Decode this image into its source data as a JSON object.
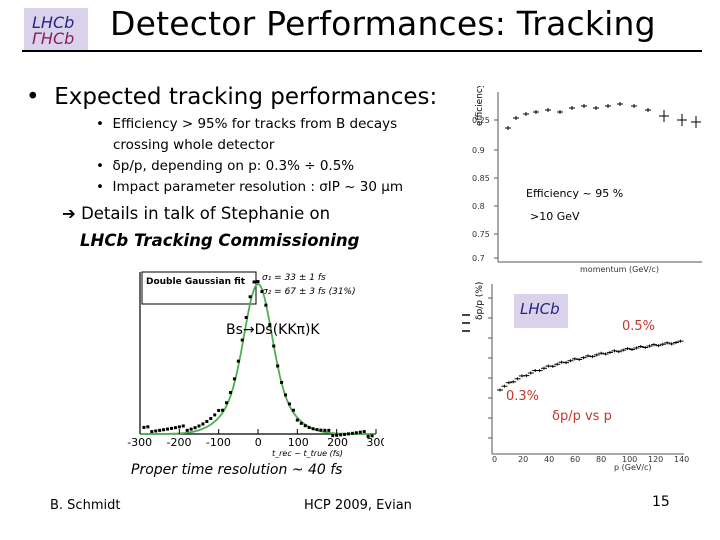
{
  "header": {
    "title": "Detector Performances: Tracking"
  },
  "logo": {
    "text_top": "LHCb",
    "text_bottom": "ГHCb"
  },
  "main_bullet": "Expected  tracking performances:",
  "sub_bullets": [
    "Efficiency > 95% for tracks from B decays",
    "crossing whole detector",
    "δp/p, depending on p:  0.3% ÷ 0.5%",
    "Impact parameter resolution : σIP ~ 30 μm"
  ],
  "details": {
    "line1": "Details in talk of Stephanie on",
    "line2": "LHCb Tracking Commissioning"
  },
  "eff_plot": {
    "ylabel": "efficiency",
    "yticks": [
      "0.25",
      "0.9",
      "0.85",
      "0.8",
      "0.75",
      "0.7"
    ],
    "xlabel": "momentum (GeV/c)",
    "label_eff": "Efficiency ~ 95 %",
    "label_gev": ">10 GeV"
  },
  "dp_plot": {
    "ylabel": "δp/p (%)",
    "label_high": "0.5%",
    "label_low": "0.3%",
    "caption": "δp/p vs p",
    "xticks": [
      "0",
      "20",
      "40",
      "60",
      "80",
      "100",
      "120",
      "140"
    ],
    "xlabel": "p (GeV/c)",
    "logo": "LHCb"
  },
  "gauss_plot": {
    "legend_title": "Double Gaussian fit",
    "sigma1": "σ₁ = 33 ± 1 fs",
    "sigma2": "σ₂ = 67 ± 3 fs (31%)",
    "decay": "Bs→Ds(KKπ)K",
    "xticks": [
      "-300",
      "-200",
      "-100",
      "0",
      "100",
      "200",
      "300"
    ],
    "xlabel": "t_rec − t_true (fs)",
    "caption": "Proper time resolution ~ 40 fs"
  },
  "footer": {
    "author": "B. Schmidt",
    "event": "HCP 2009,  Evian",
    "page": "15"
  }
}
